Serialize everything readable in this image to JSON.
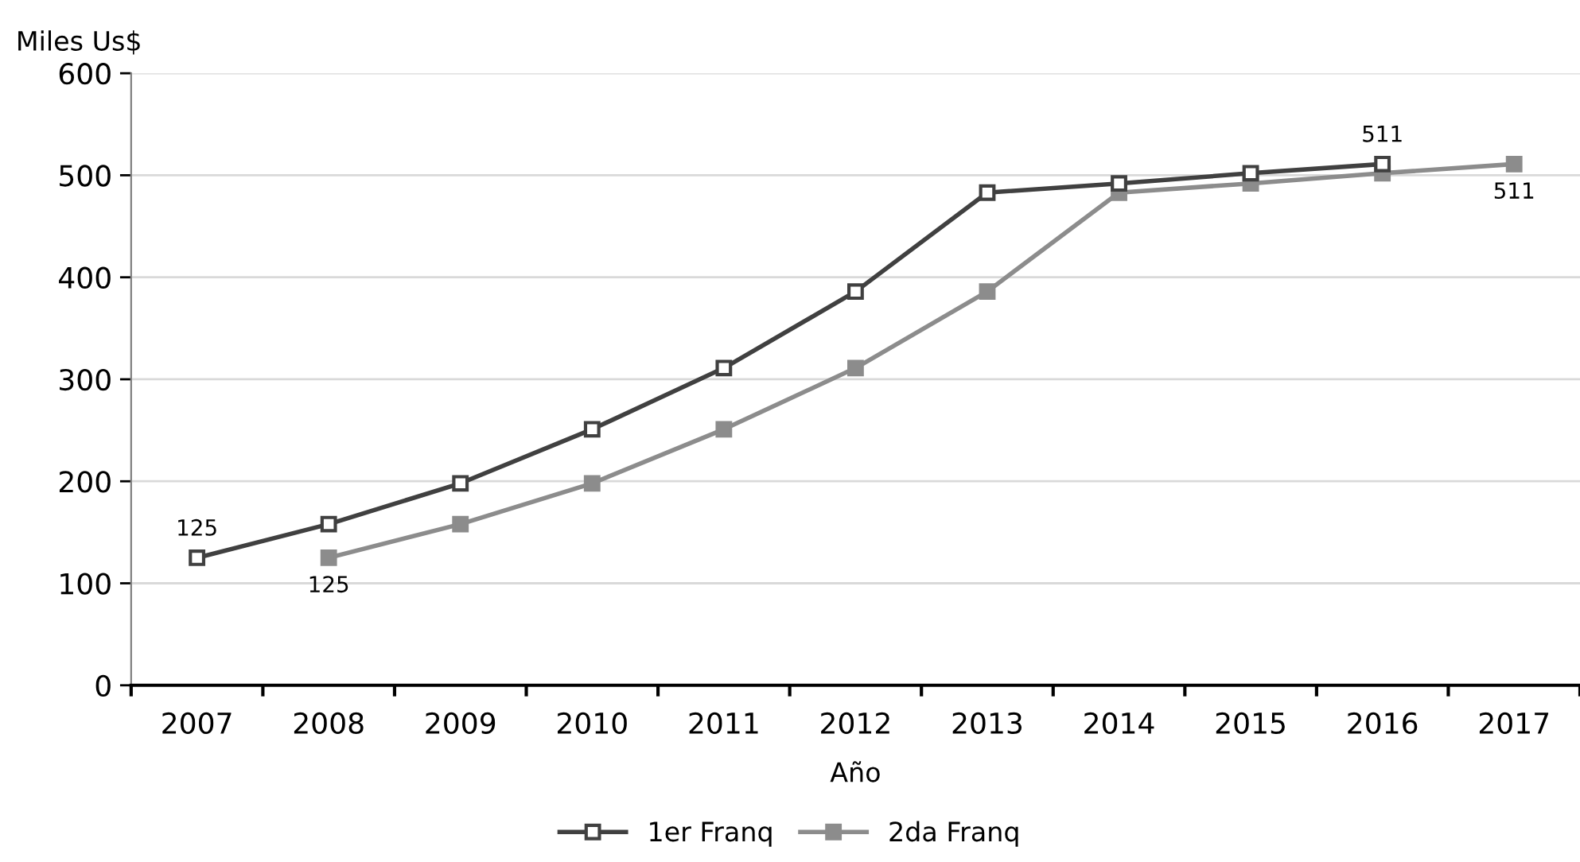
{
  "chart_data": {
    "type": "line",
    "ylabel": "Miles Us$",
    "xlabel": "Año",
    "categories": [
      "2007",
      "2008",
      "2009",
      "2010",
      "2011",
      "2012",
      "2013",
      "2014",
      "2015",
      "2016",
      "2017"
    ],
    "series": [
      {
        "name": "1er Franq",
        "color": "#404040",
        "values": [
          125,
          158,
          198,
          251,
          311,
          386,
          483,
          492,
          502,
          511,
          null
        ],
        "value_labels": [
          "125",
          null,
          null,
          null,
          null,
          null,
          null,
          null,
          null,
          "511",
          null
        ]
      },
      {
        "name": "2da Franq",
        "color": "#8c8c8c",
        "values": [
          null,
          125,
          158,
          198,
          251,
          311,
          386,
          483,
          492,
          502,
          511
        ],
        "value_labels": [
          null,
          "125",
          null,
          null,
          null,
          null,
          null,
          null,
          null,
          null,
          "511"
        ]
      }
    ],
    "ylim": [
      0,
      600
    ],
    "yticks": [
      0,
      100,
      200,
      300,
      400,
      500,
      600
    ],
    "grid": "y",
    "legend": "bottom",
    "marker": "square",
    "line_style": "solid"
  }
}
